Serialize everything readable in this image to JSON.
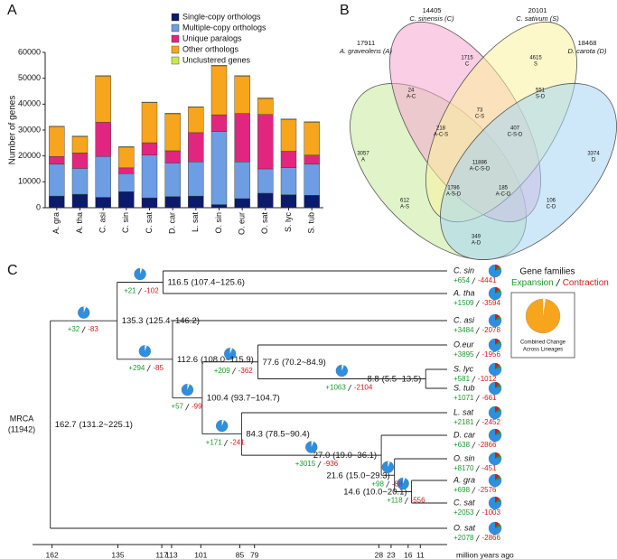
{
  "chart_data": [
    {
      "type": "stacked-bar",
      "panel": "A",
      "y_label": "Number of genes",
      "categories": [
        "A. gra",
        "A. tha",
        "C. asi",
        "C. sin",
        "C. sat",
        "D. car",
        "L. sat",
        "O. sin",
        "O. eur",
        "O. sat",
        "S. lyc",
        "S. tub"
      ],
      "series": [
        {
          "name": "Single-copy orthologs",
          "color": "#0b1a6b",
          "values": [
            4500,
            5200,
            4000,
            6200,
            3800,
            4300,
            4500,
            1200,
            3500,
            5600,
            5000,
            4800
          ]
        },
        {
          "name": "Multiple-copy orthologs",
          "color": "#6d9de2",
          "values": [
            12300,
            10000,
            15800,
            7000,
            16500,
            13000,
            13200,
            28200,
            14200,
            9400,
            10500,
            12000
          ]
        },
        {
          "name": "Unique paralogs",
          "color": "#e2267f",
          "values": [
            3000,
            6000,
            13200,
            2200,
            4800,
            4700,
            11300,
            6500,
            18700,
            21000,
            6300,
            3500
          ]
        },
        {
          "name": "Other orthologs",
          "color": "#f6a51c",
          "values": [
            11500,
            6300,
            17800,
            8000,
            15500,
            14300,
            9800,
            18900,
            14400,
            6200,
            12300,
            12700
          ]
        },
        {
          "name": "Unclustered genes",
          "color": "#c8e84c",
          "values": [
            200,
            200,
            200,
            200,
            200,
            200,
            200,
            200,
            200,
            200,
            200,
            200
          ]
        }
      ],
      "ylim": [
        0,
        60000
      ],
      "yticks": [
        0,
        10000,
        20000,
        30000,
        40000,
        50000,
        60000
      ],
      "grid": false
    },
    {
      "type": "venn",
      "panel": "B",
      "sets": [
        {
          "name": "A. graveolens (A)",
          "size": 17911,
          "color": "#c6e99c"
        },
        {
          "name": "C. sinensis (C)",
          "size": 14405,
          "color": "#f6a6cd"
        },
        {
          "name": "C. sativum (S)",
          "size": 20101,
          "color": "#fbf29c"
        },
        {
          "name": "D. carota (D)",
          "size": 18468,
          "color": "#a6d6f4"
        }
      ],
      "regions": [
        {
          "label": "A",
          "value": 3057
        },
        {
          "label": "C",
          "value": 1715
        },
        {
          "label": "S",
          "value": 4615
        },
        {
          "label": "D",
          "value": 3374
        },
        {
          "label": "A-C",
          "value": 24
        },
        {
          "label": "C-S",
          "value": 73
        },
        {
          "label": "S-D",
          "value": 551
        },
        {
          "label": "A-C-S",
          "value": 218
        },
        {
          "label": "C-S-D",
          "value": 407
        },
        {
          "label": "A-C-S-D",
          "value": 11886
        },
        {
          "label": "A-S",
          "value": 612
        },
        {
          "label": "C-D",
          "value": 106
        },
        {
          "label": "A-S-D",
          "value": 1786
        },
        {
          "label": "A-C-D",
          "value": 185
        },
        {
          "label": "A-D",
          "value": 349
        }
      ]
    },
    {
      "type": "tree",
      "panel": "C",
      "x_label": "million years ago",
      "xlim": [
        170,
        0
      ],
      "xticks": [
        162,
        135,
        117,
        113,
        101,
        85,
        79,
        28,
        23,
        16,
        11
      ],
      "legend": {
        "title": "Gene families",
        "expansion": "Expansion",
        "contraction": "Contraction",
        "pie_caption": [
          "Combined Change",
          "Across Lineages"
        ]
      },
      "root": {
        "label": "MRCA",
        "count": "(11942)",
        "age": 162.7,
        "ci": "(131.2~225.1)",
        "children": [
          {
            "age": 135.3,
            "ci": "(125.4~146.2)",
            "expansion": "+32",
            "contraction": "-83",
            "children": [
              {
                "age": 116.5,
                "ci": "(107.4~125.6)",
                "expansion": "+21",
                "contraction": "-102",
                "children": [
                  {
                    "name": "C. sin",
                    "expansion": "+654",
                    "contraction": "-4441"
                  },
                  {
                    "name": "A. tha",
                    "expansion": "+1509",
                    "contraction": "-3594"
                  }
                ]
              },
              {
                "age": 112.6,
                "ci": "(108.0~115.9)",
                "expansion": "+294",
                "contraction": "-85",
                "children": [
                  {
                    "name": "C. asi",
                    "expansion": "+3484",
                    "contraction": "-2078"
                  },
                  {
                    "age": 100.4,
                    "ci": "(93.7~104.7)",
                    "expansion": "+57",
                    "contraction": "-99",
                    "children": [
                      {
                        "age": 77.6,
                        "ci": "(70.2~84.9)",
                        "expansion": "+209",
                        "contraction": "-362",
                        "children": [
                          {
                            "name": "O.eur",
                            "expansion": "+3895",
                            "contraction": "-1956"
                          },
                          {
                            "age": 8.8,
                            "ci": "(5.5~13.5)",
                            "expansion": "+1063",
                            "contraction": "-2104",
                            "children": [
                              {
                                "name": "S. lyc",
                                "expansion": "+581",
                                "contraction": "-1012"
                              },
                              {
                                "name": "S. tub",
                                "expansion": "+1071",
                                "contraction": "-661"
                              }
                            ]
                          }
                        ]
                      },
                      {
                        "age": 84.3,
                        "ci": "(78.5~90.4)",
                        "expansion": "+171",
                        "contraction": "-241",
                        "children": [
                          {
                            "name": "L. sat",
                            "expansion": "+2181",
                            "contraction": "-2452"
                          },
                          {
                            "age": {
                              "value": 27,
                              "label": "27.0"
                            },
                            "ci": "(19.0~36.1)",
                            "expansion": "+3015",
                            "contraction": "-936",
                            "children": [
                              {
                                "name": "D. car",
                                "expansion": "+638",
                                "contraction": "-2866"
                              },
                              {
                                "age": 21.6,
                                "ci": "(15.0~29.3)",
                                "expansion": "+98",
                                "contraction": "-88",
                                "children": [
                                  {
                                    "name": "O. sin",
                                    "expansion": "+8170",
                                    "contraction": "-451"
                                  },
                                  {
                                    "age": 14.6,
                                    "ci": "(10.0~20.1)",
                                    "expansion": "+118",
                                    "contraction": "-556",
                                    "children": [
                                      {
                                        "name": "A. gra",
                                        "expansion": "+698",
                                        "contraction": "-2576"
                                      },
                                      {
                                        "name": "C. sat",
                                        "expansion": "+2053",
                                        "contraction": "-1003"
                                      }
                                    ]
                                  }
                                ]
                              }
                            ]
                          }
                        ]
                      }
                    ]
                  }
                ]
              }
            ]
          },
          {
            "name": "O. sat",
            "expansion": "+2078",
            "contraction": "-2866"
          }
        ]
      }
    }
  ]
}
